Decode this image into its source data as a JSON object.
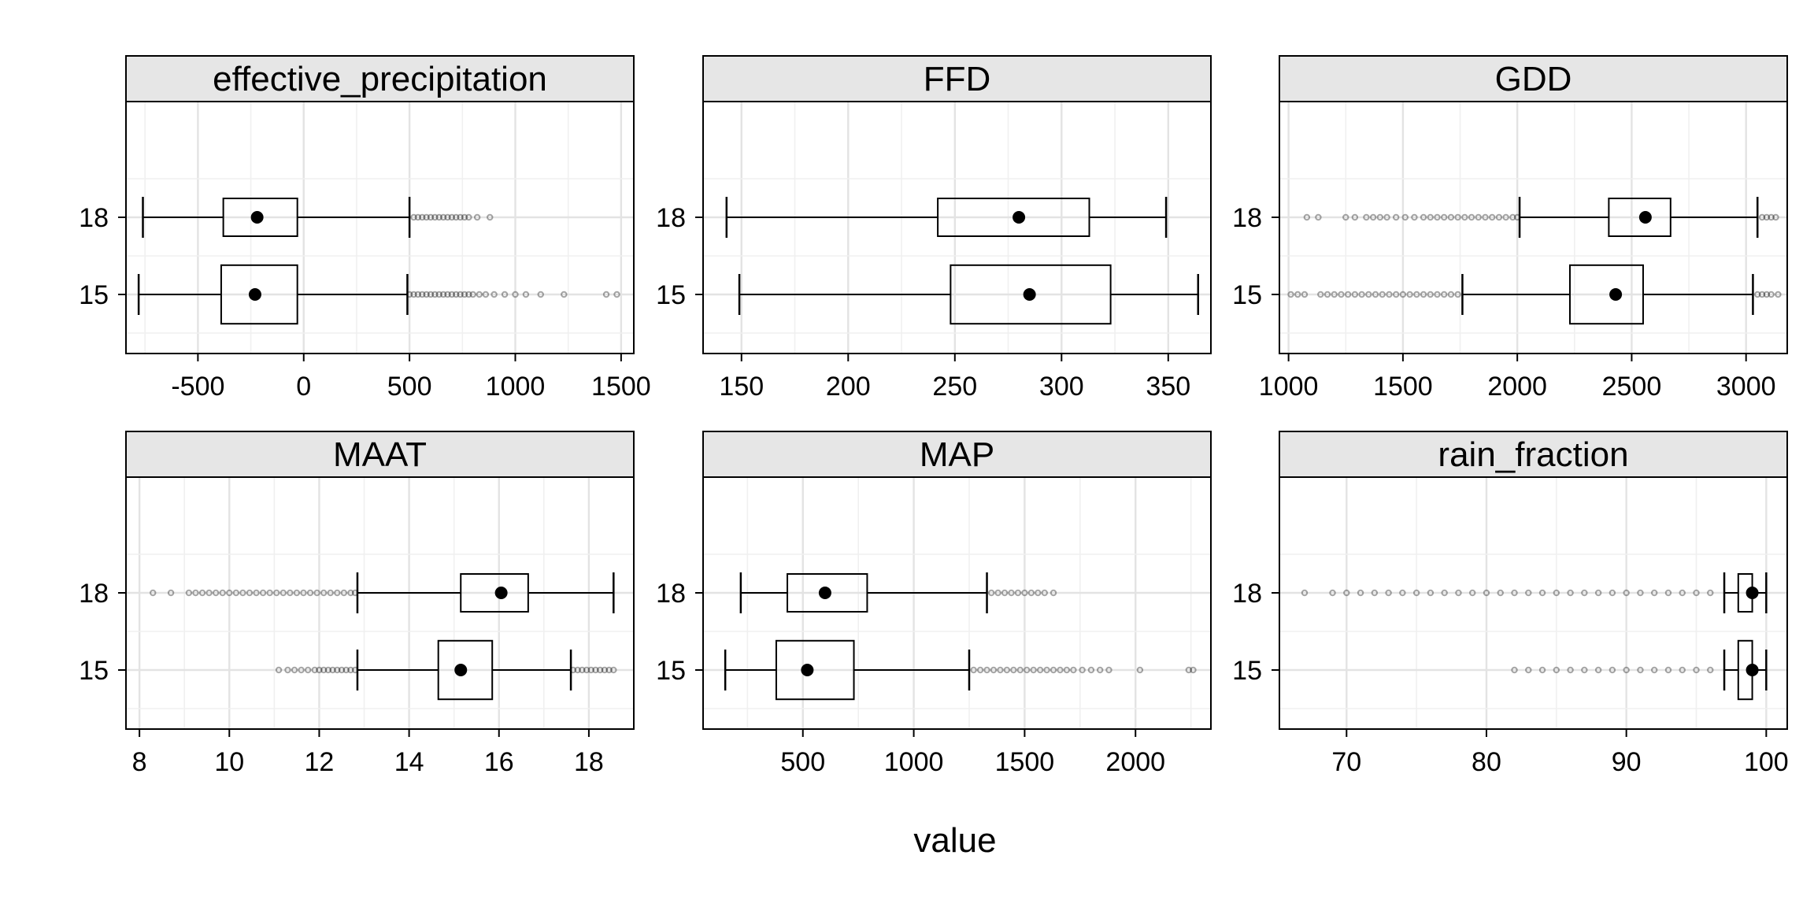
{
  "chart_data": {
    "type": "boxplot",
    "xlabel": "value",
    "groups": [
      "15",
      "18"
    ],
    "grid": true,
    "panels": [
      {
        "title": "effective_precipitation",
        "xlim": [
          -840,
          1560
        ],
        "ticks": [
          -500,
          0,
          500,
          1000,
          1500
        ],
        "tick_labels": [
          "-500",
          "0",
          "500",
          "1000",
          "1500"
        ],
        "boxes": [
          {
            "group": "18",
            "whisker_low": -760,
            "q1": -380,
            "median": -220,
            "q3": -30,
            "whisker_high": 500,
            "outliers": [
              520,
              540,
              560,
              580,
              600,
              620,
              640,
              660,
              680,
              700,
              720,
              740,
              760,
              780,
              820,
              880
            ]
          },
          {
            "group": "15",
            "whisker_low": -780,
            "q1": -390,
            "median": -230,
            "q3": -30,
            "whisker_high": 490,
            "outliers": [
              500,
              520,
              540,
              560,
              580,
              600,
              620,
              640,
              660,
              680,
              700,
              720,
              740,
              760,
              780,
              800,
              830,
              860,
              900,
              950,
              1000,
              1050,
              1120,
              1230,
              1430,
              1480
            ]
          }
        ]
      },
      {
        "title": "FFD",
        "xlim": [
          132,
          370
        ],
        "ticks": [
          150,
          200,
          250,
          300,
          350
        ],
        "tick_labels": [
          "150",
          "200",
          "250",
          "300",
          "350"
        ],
        "boxes": [
          {
            "group": "18",
            "whisker_low": 143,
            "q1": 242,
            "median": 280,
            "q3": 313,
            "whisker_high": 349,
            "outliers": []
          },
          {
            "group": "15",
            "whisker_low": 149,
            "q1": 248,
            "median": 285,
            "q3": 323,
            "whisker_high": 364,
            "outliers": []
          }
        ]
      },
      {
        "title": "GDD",
        "xlim": [
          960,
          3180
        ],
        "ticks": [
          1000,
          1500,
          2000,
          2500,
          3000
        ],
        "tick_labels": [
          "1000",
          "1500",
          "2000",
          "2500",
          "3000"
        ],
        "boxes": [
          {
            "group": "18",
            "whisker_low": 2010,
            "q1": 2400,
            "median": 2560,
            "q3": 2670,
            "whisker_high": 3050,
            "outliers": [
              1080,
              1130,
              1250,
              1290,
              1340,
              1370,
              1400,
              1430,
              1470,
              1510,
              1550,
              1590,
              1620,
              1650,
              1680,
              1710,
              1740,
              1770,
              1800,
              1830,
              1860,
              1890,
              1920,
              1950,
              1980,
              2000,
              3070,
              3090,
              3110,
              3130
            ]
          },
          {
            "group": "15",
            "whisker_low": 1760,
            "q1": 2230,
            "median": 2430,
            "q3": 2550,
            "whisker_high": 3030,
            "outliers": [
              1010,
              1040,
              1070,
              1140,
              1170,
              1200,
              1230,
              1260,
              1290,
              1320,
              1350,
              1380,
              1410,
              1440,
              1470,
              1500,
              1530,
              1560,
              1590,
              1620,
              1650,
              1680,
              1710,
              1740,
              3050,
              3070,
              3090,
              3110,
              3140
            ]
          }
        ]
      },
      {
        "title": "MAAT",
        "xlim": [
          7.7,
          19.0
        ],
        "ticks": [
          8,
          10,
          12,
          14,
          16,
          18
        ],
        "tick_labels": [
          "8",
          "10",
          "12",
          "14",
          "16",
          "18"
        ],
        "boxes": [
          {
            "group": "18",
            "whisker_low": 12.85,
            "q1": 15.15,
            "median": 16.05,
            "q3": 16.65,
            "whisker_high": 18.55,
            "outliers": [
              8.3,
              8.7,
              9.1,
              9.25,
              9.4,
              9.55,
              9.7,
              9.85,
              10.0,
              10.15,
              10.3,
              10.45,
              10.6,
              10.75,
              10.9,
              11.05,
              11.2,
              11.35,
              11.5,
              11.65,
              11.8,
              11.95,
              12.1,
              12.25,
              12.4,
              12.55,
              12.7,
              12.8
            ]
          },
          {
            "group": "15",
            "whisker_low": 12.85,
            "q1": 14.65,
            "median": 15.15,
            "q3": 15.85,
            "whisker_high": 17.6,
            "outliers": [
              11.1,
              11.3,
              11.45,
              11.6,
              11.75,
              11.9,
              12.0,
              12.1,
              12.2,
              12.3,
              12.4,
              12.5,
              12.6,
              12.7,
              12.8,
              17.65,
              17.75,
              17.85,
              17.95,
              18.05,
              18.15,
              18.25,
              18.35,
              18.45,
              18.55
            ]
          }
        ]
      },
      {
        "title": "MAP",
        "xlim": [
          50,
          2340
        ],
        "ticks": [
          500,
          1000,
          1500,
          2000
        ],
        "tick_labels": [
          "500",
          "1000",
          "1500",
          "2000"
        ],
        "boxes": [
          {
            "group": "18",
            "whisker_low": 220,
            "q1": 430,
            "median": 600,
            "q3": 790,
            "whisker_high": 1330,
            "outliers": [
              1350,
              1380,
              1410,
              1440,
              1470,
              1500,
              1530,
              1560,
              1590,
              1630
            ]
          },
          {
            "group": "15",
            "whisker_low": 150,
            "q1": 380,
            "median": 520,
            "q3": 730,
            "whisker_high": 1250,
            "outliers": [
              1270,
              1300,
              1330,
              1360,
              1390,
              1420,
              1450,
              1480,
              1510,
              1540,
              1570,
              1600,
              1630,
              1660,
              1690,
              1720,
              1760,
              1800,
              1840,
              1880,
              2020,
              2240,
              2260
            ]
          }
        ]
      },
      {
        "title": "rain_fraction",
        "xlim": [
          65.2,
          101.5
        ],
        "ticks": [
          70,
          80,
          90,
          100
        ],
        "tick_labels": [
          "70",
          "80",
          "90",
          "100"
        ],
        "boxes": [
          {
            "group": "18",
            "whisker_low": 97,
            "q1": 98,
            "median": 99,
            "q3": 99,
            "whisker_high": 100,
            "outliers": [
              67,
              69,
              70,
              71,
              72,
              73,
              74,
              75,
              76,
              77,
              78,
              79,
              80,
              81,
              82,
              83,
              84,
              85,
              86,
              87,
              88,
              89,
              90,
              91,
              92,
              93,
              94,
              95,
              96
            ]
          },
          {
            "group": "15",
            "whisker_low": 97,
            "q1": 98,
            "median": 99,
            "q3": 99,
            "whisker_high": 100,
            "outliers": [
              82,
              83,
              84,
              85,
              86,
              87,
              88,
              89,
              90,
              91,
              92,
              93,
              94,
              95,
              96
            ]
          }
        ]
      }
    ]
  }
}
